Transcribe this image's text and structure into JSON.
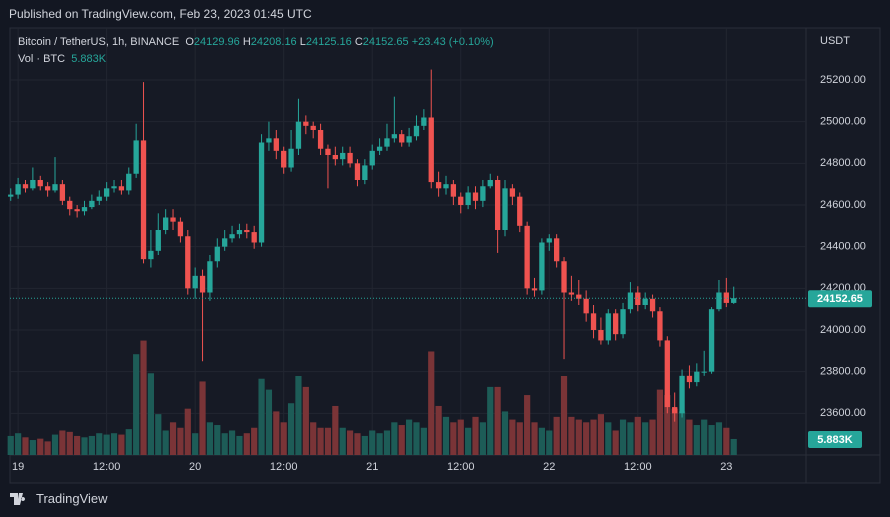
{
  "header": {
    "published": "Published on TradingView.com, Feb 23, 2023 01:45 UTC"
  },
  "footer": {
    "brand": "TradingView"
  },
  "chart_data": {
    "type": "candlestick",
    "title": "Bitcoin / TetherUS, 1h, BINANCE",
    "ohlc_letters": [
      "O",
      "H",
      "L",
      "C"
    ],
    "change_label": "+23.43 (+0.10%)",
    "currency": "USDT",
    "up_color": "#26a69a",
    "down_color": "#ef5350",
    "grid": true,
    "x": [
      -1,
      0,
      1,
      2,
      3,
      4,
      5,
      6,
      7,
      8,
      9,
      10,
      11,
      12,
      13,
      14,
      15,
      16,
      17,
      18,
      19,
      20,
      21,
      22,
      23,
      24,
      25,
      26,
      27,
      28,
      29,
      30,
      31,
      32,
      33,
      34,
      35,
      36,
      37,
      38,
      39,
      40,
      41,
      42,
      43,
      44,
      45,
      46,
      47,
      48,
      49,
      50,
      51,
      52,
      53,
      54,
      55,
      56,
      57,
      58,
      59,
      60,
      61,
      62,
      63,
      64,
      65,
      66,
      67,
      68,
      69,
      70,
      71,
      72,
      73,
      74,
      75,
      76,
      77,
      78,
      79,
      80,
      81,
      82,
      83,
      84,
      85,
      86,
      87,
      88,
      89,
      90,
      91,
      92,
      93,
      94,
      95,
      96,
      97
    ],
    "open": [
      24640,
      24650,
      24700,
      24680,
      24720,
      24690,
      24670,
      24700,
      24620,
      24580,
      24570,
      24590,
      24620,
      24640,
      24680,
      24690,
      24670,
      24750,
      24910,
      24340,
      24380,
      24480,
      24540,
      24520,
      24450,
      24200,
      24260,
      24180,
      24330,
      24400,
      24440,
      24460,
      24480,
      24470,
      24420,
      24900,
      24920,
      24860,
      24780,
      24870,
      25000,
      24980,
      24960,
      24870,
      24840,
      24820,
      24850,
      24800,
      24720,
      24790,
      24860,
      24880,
      24920,
      24940,
      24900,
      24930,
      24980,
      25020,
      24710,
      24680,
      24700,
      24640,
      24600,
      24660,
      24620,
      24690,
      24720,
      24480,
      24680,
      24640,
      24500,
      24200,
      24190,
      24420,
      24440,
      24330,
      24180,
      24170,
      24150,
      24080,
      24000,
      23950,
      24080,
      23980,
      24100,
      24180,
      24120,
      24150,
      24090,
      23950,
      23630,
      23600,
      23780,
      23750,
      23800,
      23800,
      24100,
      24180,
      24129.96
    ],
    "high": [
      24680,
      24730,
      24720,
      24780,
      24740,
      24710,
      24830,
      24720,
      24640,
      24600,
      24620,
      24650,
      24670,
      24710,
      24720,
      24720,
      24780,
      24990,
      25190,
      24480,
      24560,
      24580,
      24580,
      24540,
      24480,
      24300,
      24290,
      24360,
      24440,
      24480,
      24500,
      24510,
      24510,
      24500,
      24940,
      25000,
      24960,
      24880,
      24960,
      25110,
      25030,
      25000,
      24990,
      24890,
      24880,
      24880,
      24880,
      24820,
      24820,
      24890,
      24920,
      24990,
      25120,
      24960,
      24970,
      25030,
      25060,
      25250,
      24760,
      24740,
      24720,
      24660,
      24690,
      24690,
      24720,
      24750,
      24740,
      24720,
      24700,
      24660,
      24520,
      24250,
      24440,
      24460,
      24460,
      24350,
      24260,
      24240,
      24190,
      24120,
      24060,
      24100,
      24100,
      24130,
      24230,
      24210,
      24180,
      24170,
      24110,
      23970,
      23700,
      23810,
      23830,
      23840,
      23900,
      24110,
      24240,
      24250,
      24208.16
    ],
    "low": [
      24620,
      24630,
      24660,
      24670,
      24670,
      24640,
      24660,
      24600,
      24550,
      24540,
      24550,
      24580,
      24600,
      24620,
      24660,
      24650,
      24650,
      24730,
      24320,
      24300,
      24360,
      24460,
      24480,
      24420,
      24170,
      24150,
      23850,
      24140,
      24300,
      24380,
      24420,
      24440,
      24440,
      24390,
      24400,
      24860,
      24820,
      24750,
      24760,
      24840,
      24940,
      24920,
      24840,
      24680,
      24790,
      24790,
      24780,
      24690,
      24700,
      24770,
      24840,
      24860,
      24900,
      24880,
      24880,
      24910,
      24960,
      24680,
      24640,
      24650,
      24600,
      24560,
      24580,
      24580,
      24590,
      24680,
      24370,
      24450,
      24600,
      24470,
      24170,
      24160,
      24170,
      24380,
      24300,
      23860,
      24140,
      24120,
      24040,
      23960,
      23930,
      23930,
      23950,
      23960,
      24080,
      24090,
      24100,
      24060,
      23920,
      23600,
      23560,
      23580,
      23720,
      23730,
      23780,
      23790,
      24090,
      24110,
      24125.16
    ],
    "close": [
      24650,
      24700,
      24680,
      24720,
      24690,
      24670,
      24700,
      24620,
      24580,
      24570,
      24590,
      24620,
      24640,
      24680,
      24690,
      24670,
      24750,
      24910,
      24340,
      24380,
      24480,
      24540,
      24520,
      24450,
      24200,
      24260,
      24180,
      24330,
      24400,
      24440,
      24460,
      24480,
      24470,
      24420,
      24900,
      24920,
      24860,
      24780,
      24870,
      25000,
      24980,
      24960,
      24870,
      24840,
      24820,
      24850,
      24800,
      24720,
      24790,
      24860,
      24880,
      24920,
      24940,
      24900,
      24930,
      24980,
      25020,
      24710,
      24680,
      24700,
      24640,
      24600,
      24660,
      24620,
      24690,
      24720,
      24480,
      24680,
      24640,
      24500,
      24200,
      24190,
      24420,
      24440,
      24330,
      24180,
      24170,
      24150,
      24080,
      24000,
      23950,
      24080,
      23980,
      24100,
      24180,
      24120,
      24150,
      24090,
      23950,
      23630,
      23600,
      23780,
      23750,
      23800,
      23800,
      24100,
      24180,
      24130,
      24152.65
    ],
    "volume": {
      "name": "Vol · BTC",
      "values": [
        7000,
        8000,
        6500,
        5500,
        6000,
        5000,
        7500,
        9000,
        8500,
        7000,
        6500,
        7000,
        8000,
        7500,
        8000,
        7500,
        9500,
        37000,
        42000,
        30000,
        15000,
        9000,
        12000,
        10000,
        17000,
        8000,
        27000,
        12000,
        11000,
        8000,
        9000,
        7000,
        8000,
        10000,
        28000,
        24000,
        16000,
        12000,
        19000,
        29000,
        25000,
        12000,
        10000,
        10000,
        18000,
        10000,
        9000,
        8000,
        7000,
        9000,
        8000,
        9000,
        12000,
        11000,
        13000,
        12000,
        10000,
        38000,
        18000,
        14000,
        12000,
        13000,
        10000,
        14000,
        12000,
        25000,
        25000,
        16000,
        13000,
        12000,
        22000,
        12000,
        10000,
        9000,
        14000,
        29000,
        14000,
        13000,
        12000,
        13000,
        15000,
        12000,
        9000,
        13000,
        12000,
        14000,
        12000,
        13000,
        24000,
        22000,
        17000,
        16000,
        13000,
        11000,
        13000,
        11000,
        12000,
        10000,
        5883
      ],
      "value_labels": [
        null,
        null,
        null,
        null,
        null,
        null,
        null,
        null,
        null,
        null,
        null,
        null,
        null,
        null,
        null,
        null,
        null,
        null,
        null,
        null,
        null,
        null,
        null,
        null,
        null,
        null,
        null,
        null,
        null,
        null,
        null,
        null,
        null,
        null,
        null,
        null,
        null,
        null,
        null,
        null,
        null,
        null,
        null,
        null,
        null,
        null,
        null,
        null,
        null,
        null,
        null,
        null,
        null,
        null,
        null,
        null,
        null,
        null,
        null,
        null,
        null,
        null,
        null,
        null,
        null,
        null,
        null,
        null,
        null,
        null,
        null,
        null,
        null,
        null,
        null,
        null,
        null,
        null,
        null,
        null,
        null,
        null,
        null,
        null,
        null,
        null,
        null,
        null,
        null,
        null,
        null,
        null,
        null,
        null,
        null,
        null,
        null,
        null,
        "5.883K"
      ],
      "ylim": [
        0,
        156000
      ],
      "up_color": "#1d5c57",
      "down_color": "#7a3437"
    },
    "xlim": [
      -1.1,
      106.8
    ],
    "xticks": [
      {
        "value": 0,
        "label": "19"
      },
      {
        "value": 12,
        "label": "12:00"
      },
      {
        "value": 24,
        "label": "20"
      },
      {
        "value": 36,
        "label": "12:00"
      },
      {
        "value": 48,
        "label": "21"
      },
      {
        "value": 60,
        "label": "12:00"
      },
      {
        "value": 72,
        "label": "22"
      },
      {
        "value": 84,
        "label": "12:00"
      },
      {
        "value": 96,
        "label": "23"
      }
    ],
    "ylim": [
      23400,
      25440
    ],
    "yticks": [
      {
        "value": 23600,
        "label": "23600.00"
      },
      {
        "value": 23800,
        "label": "23800.00"
      },
      {
        "value": 24000,
        "label": "24000.00"
      },
      {
        "value": 24200,
        "label": "24200.00"
      },
      {
        "value": 24400,
        "label": "24400.00"
      },
      {
        "value": 24600,
        "label": "24600.00"
      },
      {
        "value": 24800,
        "label": "24800.00"
      },
      {
        "value": 25000,
        "label": "25000.00"
      },
      {
        "value": 25200,
        "label": "25200.00"
      }
    ]
  }
}
